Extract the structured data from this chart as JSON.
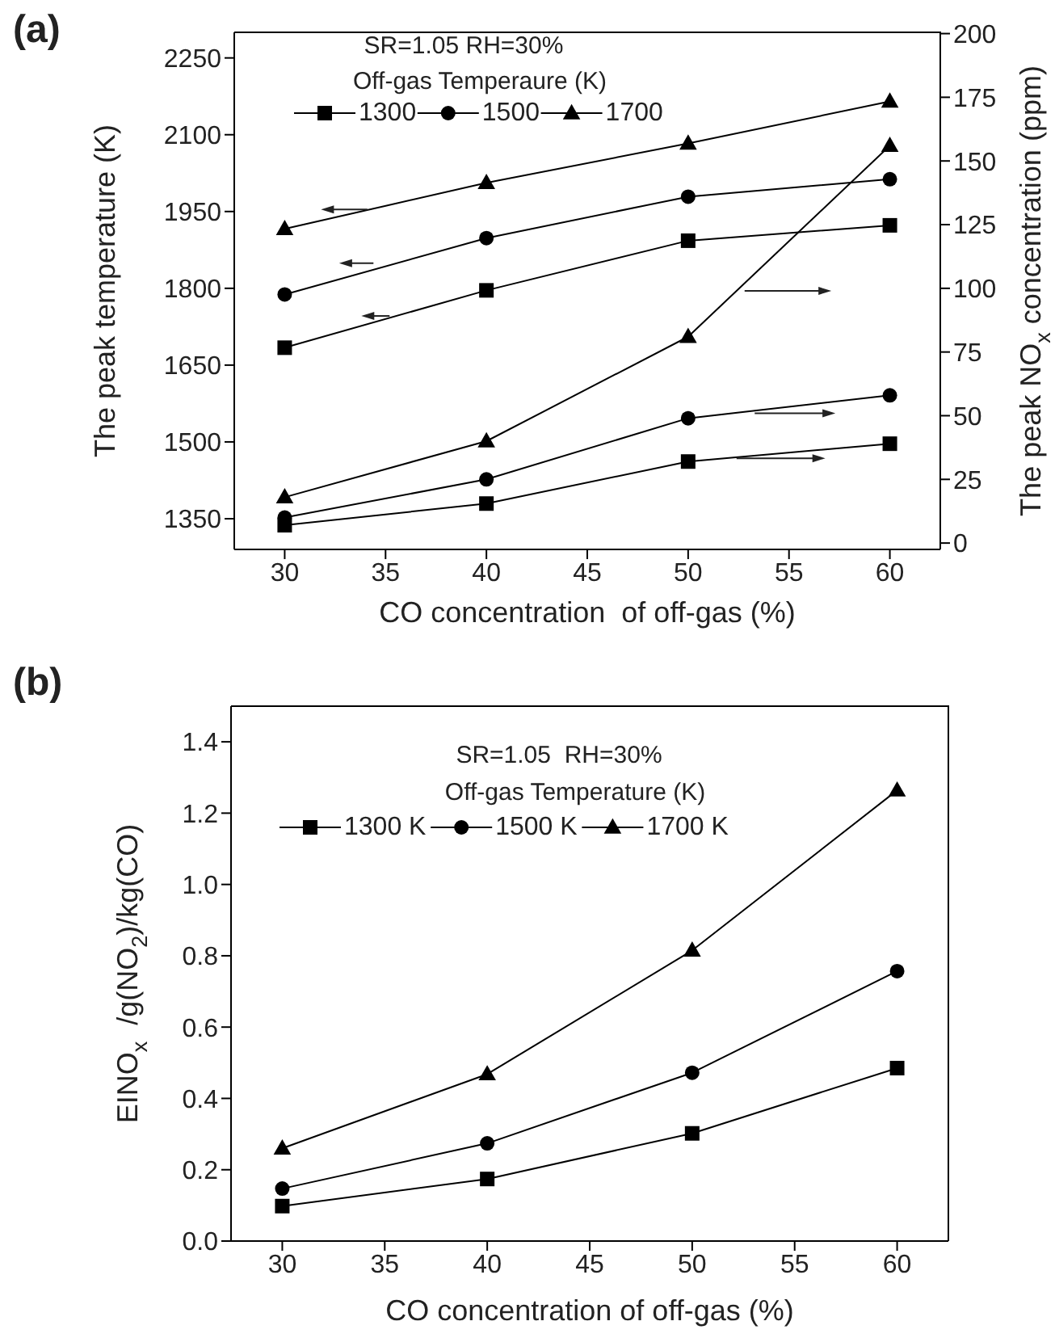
{
  "chart_data": [
    {
      "type": "line",
      "title": "(a)",
      "annotations": [
        "SR=1.05 RH=30%"
      ],
      "legend_title": "Off-gas Temperaure (K)",
      "legend": "top",
      "xlabel": "CO concentration  of off-gas (%)",
      "ylabel": "The peak temperature (K)",
      "y2label": "The peak NO$_{x}$ concentration (ppm)",
      "x": [
        30,
        40,
        50,
        60
      ],
      "xlim": [
        27.5,
        62.5
      ],
      "xticks": [
        30,
        35,
        40,
        45,
        50,
        55,
        60
      ],
      "ylim": [
        1290,
        2300
      ],
      "yticks": [
        1350,
        1500,
        1650,
        1800,
        1950,
        2100,
        2250
      ],
      "y2lim": [
        -2.5,
        200.5
      ],
      "y2ticks": [
        0,
        25,
        50,
        75,
        100,
        125,
        150,
        175,
        200
      ],
      "series": [
        {
          "name": "1300",
          "color": "#000000",
          "marker": "square",
          "values": [
            1684,
            1796,
            1893,
            1923
          ]
        },
        {
          "name": "1500",
          "color": "#000000",
          "marker": "circle",
          "values": [
            1788,
            1898,
            1979,
            2013
          ]
        },
        {
          "name": "1700",
          "color": "#000000",
          "marker": "triangle",
          "values": [
            1916,
            2006,
            2083,
            2165
          ]
        },
        {
          "color": "#000000",
          "marker": "square",
          "axis": "y2",
          "values": [
            7,
            15.5,
            32,
            39
          ]
        },
        {
          "color": "#000000",
          "marker": "circle",
          "axis": "y2",
          "values": [
            10,
            25,
            49,
            58
          ]
        },
        {
          "color": "#000000",
          "marker": "triangle",
          "axis": "y2",
          "values": [
            18,
            40,
            81,
            156
          ]
        }
      ]
    },
    {
      "type": "line",
      "title": "(b)",
      "annotations": [
        "SR=1.05  RH=30%"
      ],
      "legend_title": "Off-gas Temperature (K)",
      "legend": "top",
      "xlabel": "CO concentration of off-gas (%)",
      "ylabel": "EINO$_{x}$  /g(NO$_{2}$)/kg(CO)",
      "x": [
        30,
        40,
        50,
        60
      ],
      "xlim": [
        27.5,
        62.5
      ],
      "xticks": [
        30,
        35,
        40,
        45,
        50,
        55,
        60
      ],
      "ylim": [
        0,
        1.5
      ],
      "yticks": [
        {
          "value": 0,
          "label": "0.0"
        },
        0.2,
        0.4,
        0.6,
        0.8,
        {
          "value": 1,
          "label": "1.0"
        },
        1.2,
        1.4
      ],
      "series": [
        {
          "name": "1300 K",
          "color": "#000000",
          "marker": "square",
          "values": [
            0.098,
            0.174,
            0.302,
            0.485
          ]
        },
        {
          "name": "1500 K",
          "color": "#000000",
          "marker": "circle",
          "values": [
            0.147,
            0.274,
            0.472,
            0.757
          ]
        },
        {
          "name": "1700 K",
          "color": "#000000",
          "marker": "triangle",
          "values": [
            0.26,
            0.468,
            0.815,
            1.264
          ]
        }
      ]
    }
  ]
}
